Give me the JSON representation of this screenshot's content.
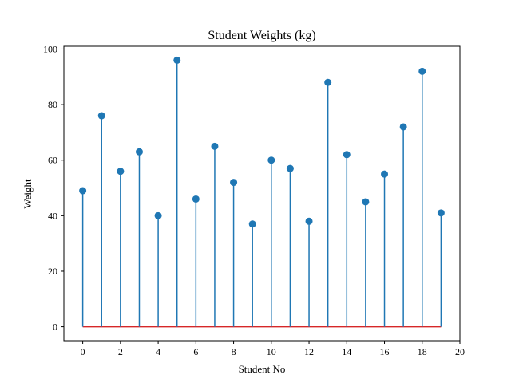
{
  "chart_data": {
    "type": "stem",
    "title": "Student Weights (kg)",
    "xlabel": "Student No",
    "ylabel": "Weight",
    "x": [
      0,
      1,
      2,
      3,
      4,
      5,
      6,
      7,
      8,
      9,
      10,
      11,
      12,
      13,
      14,
      15,
      16,
      17,
      18,
      19
    ],
    "values": [
      49,
      76,
      56,
      63,
      40,
      96,
      46,
      65,
      52,
      37,
      60,
      57,
      38,
      88,
      62,
      45,
      55,
      72,
      92,
      41
    ],
    "xlim": [
      -1,
      20
    ],
    "ylim": [
      -5,
      101
    ],
    "xticks": [
      "0",
      "2",
      "4",
      "6",
      "8",
      "10",
      "12",
      "14",
      "16",
      "18",
      "20"
    ],
    "yticks": [
      "0",
      "20",
      "40",
      "60",
      "80",
      "100"
    ],
    "baseline": 0,
    "grid": false,
    "colors": {
      "stem": "#1f77b4",
      "marker": "#1f77b4",
      "baseline": "#d62728",
      "axes": "#000000"
    }
  }
}
